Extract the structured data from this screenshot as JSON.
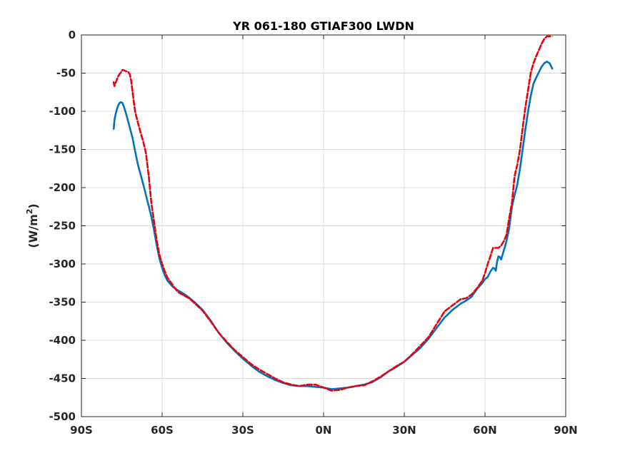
{
  "chart_data": {
    "type": "line",
    "title": "YR 061-180 GTIAF300 LWDN",
    "xlabel": "",
    "ylabel": "(W/m",
    "ylabel_sup": "2",
    "ylabel_close": ")",
    "xlim": [
      -90,
      90
    ],
    "ylim": [
      -500,
      0
    ],
    "grid": true,
    "x_ticks": [
      {
        "value": -90,
        "label": "90S"
      },
      {
        "value": -60,
        "label": "60S"
      },
      {
        "value": -30,
        "label": "30S"
      },
      {
        "value": 0,
        "label": "0N"
      },
      {
        "value": 30,
        "label": "30N"
      },
      {
        "value": 60,
        "label": "60N"
      },
      {
        "value": 90,
        "label": "90N"
      }
    ],
    "y_ticks": [
      {
        "value": 0,
        "label": "0"
      },
      {
        "value": -50,
        "label": "-50"
      },
      {
        "value": -100,
        "label": "-100"
      },
      {
        "value": -150,
        "label": "-150"
      },
      {
        "value": -200,
        "label": "-200"
      },
      {
        "value": -250,
        "label": "-250"
      },
      {
        "value": -300,
        "label": "-300"
      },
      {
        "value": -350,
        "label": "-350"
      },
      {
        "value": -400,
        "label": "-400"
      },
      {
        "value": -450,
        "label": "-450"
      },
      {
        "value": -500,
        "label": "-500"
      }
    ],
    "series": [
      {
        "color": "#0072BD",
        "style": "solid",
        "x": [
          -78,
          -77.7,
          -77.3,
          -76.8,
          -76.3,
          -75.8,
          -75.3,
          -74.8,
          -74.3,
          -73.5,
          -72.5,
          -71,
          -70,
          -69,
          -68,
          -67,
          -66,
          -65,
          -64,
          -63,
          -62,
          -61,
          -60,
          -59,
          -58,
          -56,
          -54,
          -52,
          -50,
          -48,
          -45,
          -42,
          -39,
          -36,
          -33,
          -30,
          -27,
          -24,
          -21,
          -18,
          -15,
          -12,
          -9,
          -6,
          -3,
          0,
          3,
          6,
          9,
          12,
          15,
          18,
          21,
          24,
          27,
          30,
          33,
          36,
          39,
          42,
          45,
          48,
          51,
          53,
          55,
          57,
          59,
          60,
          61,
          62,
          63,
          63.5,
          64,
          64.5,
          65,
          65.5,
          66,
          66.5,
          67,
          67.5,
          68,
          69,
          70,
          71,
          72,
          73,
          74,
          75,
          76,
          77,
          78,
          79,
          80,
          81,
          82,
          83,
          84,
          85
        ],
        "y": [
          -123,
          -111,
          -104,
          -97,
          -92,
          -89,
          -88,
          -89,
          -93,
          -102,
          -115,
          -135,
          -153,
          -170,
          -183,
          -196,
          -210,
          -224,
          -238,
          -256,
          -276,
          -293,
          -305,
          -315,
          -322,
          -330,
          -335,
          -339,
          -344,
          -350,
          -360,
          -374,
          -390,
          -403,
          -414,
          -424,
          -433,
          -441,
          -447,
          -452,
          -456,
          -459,
          -460,
          -460,
          -461,
          -462,
          -464,
          -463,
          -462,
          -460,
          -458,
          -455,
          -449,
          -441,
          -435,
          -428,
          -419,
          -410,
          -398,
          -384,
          -370,
          -360,
          -352,
          -348,
          -343,
          -333,
          -325,
          -320,
          -317,
          -310,
          -305,
          -306,
          -309,
          -297,
          -290,
          -291,
          -294,
          -288,
          -282,
          -276,
          -270,
          -253,
          -225,
          -210,
          -196,
          -175,
          -150,
          -124,
          -100,
          -80,
          -64,
          -56,
          -49,
          -42,
          -37,
          -35,
          -37,
          -44
        ]
      },
      {
        "color": "#E8000B",
        "style": "dashed",
        "x": [
          -78,
          -77.7,
          -77.3,
          -76.8,
          -76.3,
          -75.8,
          -75.3,
          -74.8,
          -74.3,
          -73.8,
          -73,
          -72.5,
          -72,
          -71.5,
          -71,
          -70.5,
          -70,
          -69,
          -68,
          -67,
          -66,
          -65,
          -64,
          -63,
          -62,
          -61,
          -60,
          -59,
          -58,
          -57,
          -56,
          -55,
          -54,
          -52,
          -50,
          -48,
          -45,
          -42,
          -39,
          -36,
          -33,
          -30,
          -27,
          -24,
          -21,
          -18,
          -15,
          -12,
          -9,
          -6,
          -3,
          0,
          3,
          6,
          9,
          12,
          15,
          18,
          21,
          24,
          27,
          30,
          33,
          36,
          39,
          42,
          45,
          48,
          51,
          53,
          55,
          57,
          59,
          60,
          61,
          62,
          63,
          64,
          65,
          66,
          67,
          68,
          69,
          70,
          71,
          72,
          73,
          74,
          75,
          76,
          77,
          78,
          79,
          80,
          81,
          82,
          83,
          84,
          85
        ],
        "y": [
          -62,
          -67,
          -63,
          -58,
          -54,
          -51,
          -49,
          -46,
          -46,
          -47,
          -48,
          -49,
          -52,
          -60,
          -75,
          -88,
          -101,
          -115,
          -128,
          -140,
          -155,
          -185,
          -220,
          -245,
          -270,
          -288,
          -300,
          -310,
          -318,
          -323,
          -328,
          -333,
          -337,
          -341,
          -345,
          -351,
          -361,
          -375,
          -390,
          -402,
          -413,
          -422,
          -431,
          -438,
          -444,
          -450,
          -455,
          -458,
          -460,
          -458,
          -458,
          -462,
          -466,
          -465,
          -462,
          -460,
          -459,
          -454,
          -448,
          -441,
          -434,
          -428,
          -418,
          -407,
          -396,
          -379,
          -362,
          -354,
          -346,
          -345,
          -340,
          -332,
          -322,
          -312,
          -300,
          -290,
          -279,
          -279,
          -279,
          -276,
          -270,
          -262,
          -240,
          -220,
          -185,
          -170,
          -150,
          -122,
          -95,
          -72,
          -50,
          -37,
          -28,
          -20,
          -12,
          -5,
          -2,
          -2,
          -2
        ]
      }
    ]
  }
}
